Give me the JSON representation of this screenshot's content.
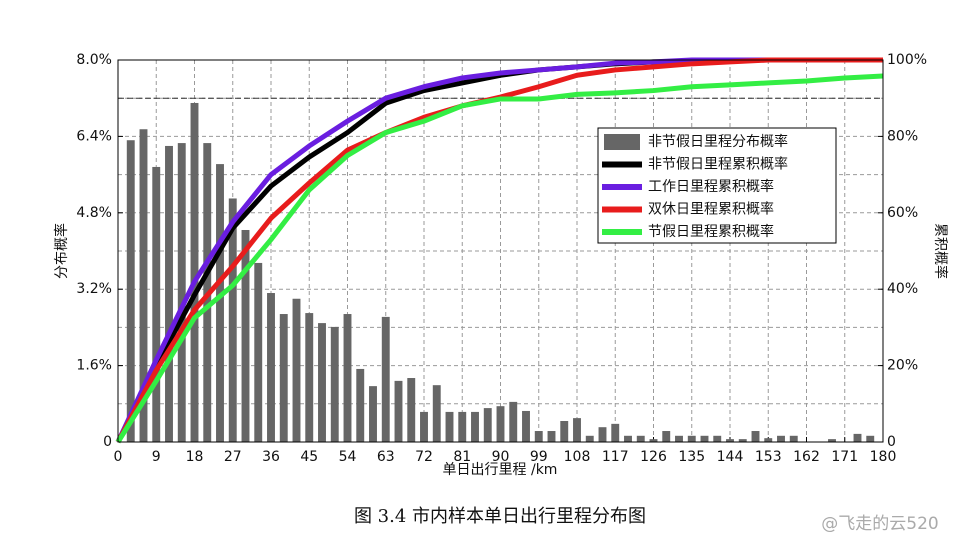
{
  "chart_data": {
    "type": "bar",
    "caption": "图 3.4  市内样本单日出行里程分布图",
    "watermark": "@飞走的云520",
    "xlabel": "单日出行里程 /km",
    "ylabel": "分布概率",
    "y2label": "累积概率",
    "xlim": [
      0,
      180
    ],
    "xticks": [
      0,
      9,
      18,
      27,
      36,
      45,
      54,
      63,
      72,
      81,
      90,
      99,
      108,
      117,
      126,
      135,
      144,
      153,
      162,
      171,
      180
    ],
    "ylim": [
      0,
      8
    ],
    "yticks": [
      0,
      {
        "value": 1.6,
        "label": "1.6%"
      },
      {
        "value": 3.2,
        "label": "3.2%"
      },
      {
        "value": 4.8,
        "label": "4.8%"
      },
      {
        "value": 6.4,
        "label": "6.4%"
      },
      {
        "value": 8.0,
        "label": "8.0%"
      }
    ],
    "y2lim": [
      0,
      100
    ],
    "y2ticks": [
      0,
      {
        "value": 20,
        "label": "20%"
      },
      {
        "value": 40,
        "label": "40%"
      },
      {
        "value": 60,
        "label": "60%"
      },
      {
        "value": 80,
        "label": "80%"
      },
      {
        "value": 100,
        "label": "100%"
      }
    ],
    "y2minor": [
      10,
      30,
      50,
      70,
      90
    ],
    "hline_y2": 90,
    "grid": true,
    "legend": "upper right",
    "bars": {
      "name": "非节假日里程分布概率",
      "color": "#666666",
      "x": [
        3,
        6,
        9,
        12,
        15,
        18,
        21,
        24,
        27,
        30,
        33,
        36,
        39,
        42,
        45,
        48,
        51,
        54,
        57,
        60,
        63,
        66,
        69,
        72,
        75,
        78,
        81,
        84,
        87,
        90,
        93,
        96,
        99,
        102,
        105,
        108,
        111,
        114,
        117,
        120,
        123,
        126,
        129,
        132,
        135,
        138,
        141,
        144,
        147,
        150,
        153,
        156,
        159,
        162,
        165,
        168,
        171,
        174,
        177
      ],
      "values": [
        6.32,
        6.55,
        5.76,
        6.2,
        6.26,
        7.1,
        6.26,
        5.82,
        5.1,
        4.44,
        3.75,
        3.12,
        2.68,
        3.0,
        2.7,
        2.49,
        2.41,
        2.68,
        1.53,
        1.17,
        2.62,
        1.28,
        1.34,
        0.63,
        1.19,
        0.63,
        0.63,
        0.63,
        0.71,
        0.75,
        0.84,
        0.65,
        0.23,
        0.23,
        0.44,
        0.5,
        0.13,
        0.31,
        0.38,
        0.13,
        0.13,
        0.06,
        0.23,
        0.13,
        0.13,
        0.13,
        0.13,
        0.06,
        0.06,
        0.23,
        0.08,
        0.13,
        0.13,
        0,
        0,
        0.06,
        0,
        0.17,
        0.13
      ]
    },
    "x": [
      0,
      9,
      18,
      27,
      36,
      45,
      54,
      63,
      72,
      81,
      90,
      99,
      108,
      117,
      126,
      135,
      144,
      153,
      162,
      171,
      180
    ],
    "series": [
      {
        "name": "非节假日里程累积概率",
        "color": "#000000",
        "type": "line",
        "axis": "y2",
        "values": [
          0,
          20,
          38.5,
          56,
          67,
          74.6,
          81,
          88.7,
          92,
          94,
          96,
          97.4,
          98.2,
          99,
          99.5,
          99.5,
          100,
          100,
          100,
          100,
          100
        ]
      },
      {
        "name": "工作日里程累积概率",
        "color": "#6a1ee0",
        "type": "line",
        "axis": "y2",
        "values": [
          0,
          21.5,
          42,
          57.6,
          70,
          77.5,
          84,
          90,
          93,
          95.3,
          96.6,
          97.4,
          98.2,
          99.2,
          99.5,
          100,
          100,
          100,
          100,
          100,
          100
        ]
      },
      {
        "name": "双休日里程累积概率",
        "color": "#e81c1c",
        "type": "line",
        "axis": "y2",
        "values": [
          0,
          18.8,
          34.6,
          46,
          58.6,
          67.8,
          76.4,
          81,
          85,
          88,
          90.3,
          93,
          96,
          97.4,
          98.2,
          99,
          99.5,
          100,
          100,
          100,
          100
        ]
      },
      {
        "name": "节假日里程累积概率",
        "color": "#33ee44",
        "type": "line",
        "axis": "y2",
        "values": [
          0,
          16,
          32.5,
          41,
          53,
          66,
          75,
          81,
          84,
          88,
          89.8,
          89.8,
          91,
          91.4,
          92,
          93,
          93.5,
          94,
          94.5,
          95.3,
          95.8
        ]
      }
    ]
  }
}
